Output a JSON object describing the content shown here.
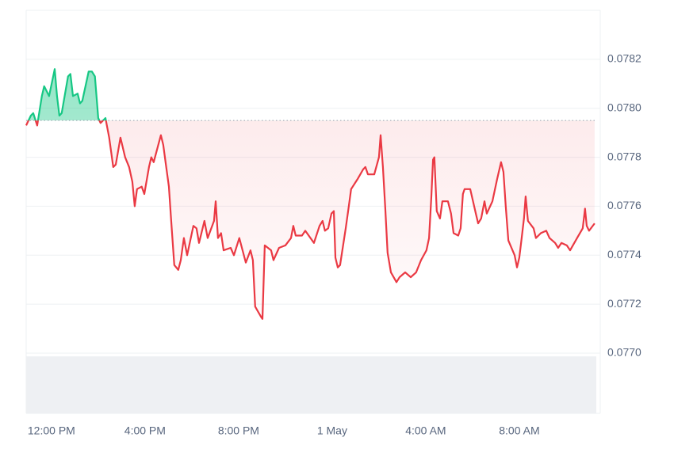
{
  "chart_data": {
    "type": "line",
    "x": [
      -1.08,
      -0.88,
      -0.78,
      -0.61,
      -0.41,
      -0.31,
      -0.1,
      0.14,
      0.24,
      0.34,
      0.44,
      0.71,
      0.81,
      0.92,
      1.12,
      1.22,
      1.32,
      1.59,
      1.73,
      1.86,
      2.0,
      2.1,
      2.31,
      2.47,
      2.64,
      2.75,
      2.95,
      3.15,
      3.32,
      3.46,
      3.56,
      3.66,
      3.86,
      3.97,
      4.17,
      4.27,
      4.37,
      4.68,
      4.78,
      4.88,
      5.02,
      5.12,
      5.25,
      5.42,
      5.53,
      5.66,
      5.8,
      6.07,
      6.2,
      6.31,
      6.54,
      6.68,
      6.95,
      7.02,
      7.12,
      7.25,
      7.36,
      7.66,
      7.8,
      8.03,
      8.31,
      8.51,
      8.61,
      8.71,
      8.95,
      9.02,
      9.12,
      9.39,
      9.49,
      9.73,
      10.0,
      10.24,
      10.34,
      10.44,
      10.71,
      10.85,
      11.22,
      11.46,
      11.59,
      11.69,
      11.83,
      11.97,
      12.07,
      12.14,
      12.24,
      12.34,
      12.58,
      12.71,
      12.81,
      13.08,
      13.32,
      13.42,
      13.53,
      13.8,
      14.0,
      14.07,
      14.17,
      14.27,
      14.37,
      14.51,
      14.75,
      14.88,
      15.12,
      15.36,
      15.59,
      15.8,
      16.03,
      16.14,
      16.24,
      16.31,
      16.37,
      16.47,
      16.61,
      16.71,
      16.95,
      17.08,
      17.19,
      17.39,
      17.49,
      17.59,
      17.66,
      17.9,
      18.14,
      18.24,
      18.37,
      18.51,
      18.61,
      18.85,
      19.05,
      19.22,
      19.32,
      19.42,
      19.53,
      19.8,
      19.9,
      20.0,
      20.1,
      20.2,
      20.27,
      20.37,
      20.61,
      20.71,
      20.92,
      21.15,
      21.29,
      21.53,
      21.66,
      21.8,
      22.03,
      22.17,
      22.47,
      22.71,
      22.81,
      22.88,
      22.98,
      23.22
    ],
    "values": [
      0.07793,
      0.07797,
      0.07798,
      0.07793,
      0.07805,
      0.07809,
      0.07805,
      0.07816,
      0.07805,
      0.07797,
      0.07798,
      0.07813,
      0.07814,
      0.07805,
      0.07806,
      0.07802,
      0.07803,
      0.07815,
      0.07815,
      0.07813,
      0.07796,
      0.07794,
      0.07796,
      0.07788,
      0.07776,
      0.07777,
      0.07788,
      0.0778,
      0.07776,
      0.0777,
      0.0776,
      0.07767,
      0.07768,
      0.07765,
      0.07776,
      0.0778,
      0.07778,
      0.07789,
      0.07785,
      0.07778,
      0.07768,
      0.07754,
      0.07736,
      0.07734,
      0.07738,
      0.07747,
      0.0774,
      0.07752,
      0.07751,
      0.07745,
      0.07754,
      0.07747,
      0.07754,
      0.07762,
      0.07747,
      0.07749,
      0.07742,
      0.07743,
      0.0774,
      0.07747,
      0.07737,
      0.07742,
      0.07738,
      0.07719,
      0.07715,
      0.07714,
      0.07744,
      0.07742,
      0.07738,
      0.07743,
      0.07744,
      0.07747,
      0.07752,
      0.07748,
      0.07748,
      0.0775,
      0.07745,
      0.07752,
      0.07754,
      0.0775,
      0.07751,
      0.07757,
      0.07758,
      0.07739,
      0.07735,
      0.07736,
      0.07751,
      0.0776,
      0.07767,
      0.07771,
      0.07775,
      0.07776,
      0.07773,
      0.07773,
      0.0778,
      0.07789,
      0.07776,
      0.07759,
      0.07741,
      0.07733,
      0.07729,
      0.07731,
      0.07733,
      0.07731,
      0.07733,
      0.07738,
      0.07742,
      0.07747,
      0.07764,
      0.07779,
      0.0778,
      0.07758,
      0.07755,
      0.07762,
      0.07762,
      0.07757,
      0.07749,
      0.07748,
      0.07751,
      0.07765,
      0.07767,
      0.07767,
      0.07757,
      0.07753,
      0.07755,
      0.07762,
      0.07757,
      0.07762,
      0.07771,
      0.07778,
      0.07774,
      0.0776,
      0.07746,
      0.0774,
      0.07735,
      0.07739,
      0.07747,
      0.07755,
      0.07764,
      0.07754,
      0.07751,
      0.07747,
      0.07749,
      0.0775,
      0.07747,
      0.07745,
      0.07743,
      0.07745,
      0.07744,
      0.07742,
      0.07747,
      0.07751,
      0.07759,
      0.07752,
      0.0775,
      0.07753
    ],
    "reference_line": 0.07795,
    "up_color": "#16c784",
    "down_color": "#ea3943",
    "xlim": [
      -1.08,
      23.29
    ],
    "xticks": [
      {
        "value": 0,
        "label": "12:00 PM"
      },
      {
        "value": 4,
        "label": "4:00 PM"
      },
      {
        "value": 8,
        "label": "8:00 PM"
      },
      {
        "value": 12,
        "label": "1 May"
      },
      {
        "value": 16,
        "label": "4:00 AM"
      },
      {
        "value": 20,
        "label": "8:00 AM"
      }
    ],
    "ylim": [
      0.077,
      0.0784
    ],
    "yticks": [
      {
        "value": 0.077,
        "label": "0.0770"
      },
      0.0772,
      0.0774,
      0.0776,
      0.0778,
      {
        "value": 0.078,
        "label": "0.0780"
      },
      0.0782
    ],
    "grid": true
  }
}
